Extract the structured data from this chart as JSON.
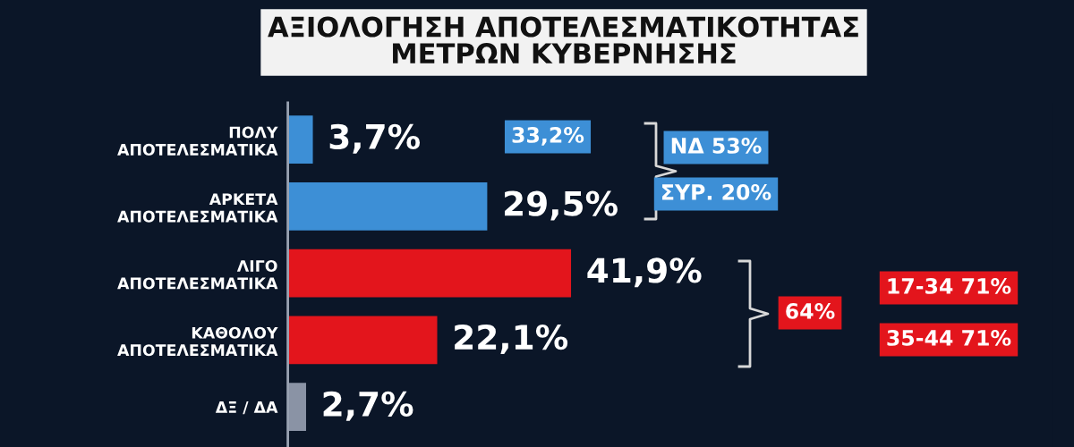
{
  "chart_data": {
    "type": "bar",
    "orientation": "horizontal",
    "title": "ΑΞΙΟΛΟΓΗΣΗ ΑΠΟΤΕΛΕΣΜΑΤΙΚΟΤΗΤΑΣ\nΜΕΤΡΩΝ ΚΥΒΕΡΝΗΣΗΣ",
    "categories": [
      "ΠΟΛΥ\nΑΠΟΤΕΛΕΣΜΑΤΙΚΑ",
      "ΑΡΚΕΤΑ\nΑΠΟΤΕΛΕΣΜΑΤΙΚΑ",
      "ΛΙΓΟ\nΑΠΟΤΕΛΕΣΜΑΤΙΚΑ",
      "ΚΑΘΟΛΟΥ\nΑΠΟΤΕΛΕΣΜΑΤΙΚΑ",
      "ΔΞ / ΔΑ"
    ],
    "values": [
      3.7,
      29.5,
      41.9,
      22.1,
      2.7
    ],
    "colors": [
      "#3d8fd6",
      "#3d8fd6",
      "#e3151c",
      "#e3151c",
      "#8a93a5"
    ],
    "value_labels": [
      "3,7%",
      "29,5%",
      "41,9%",
      "22,1%",
      "2,7%"
    ],
    "annotations": [
      "33,2%",
      "ΝΔ 53%",
      "ΣΥΡ. 20%",
      "64%",
      "17-34 71%",
      "35-44 71%"
    ],
    "grid": false,
    "legend": false
  }
}
